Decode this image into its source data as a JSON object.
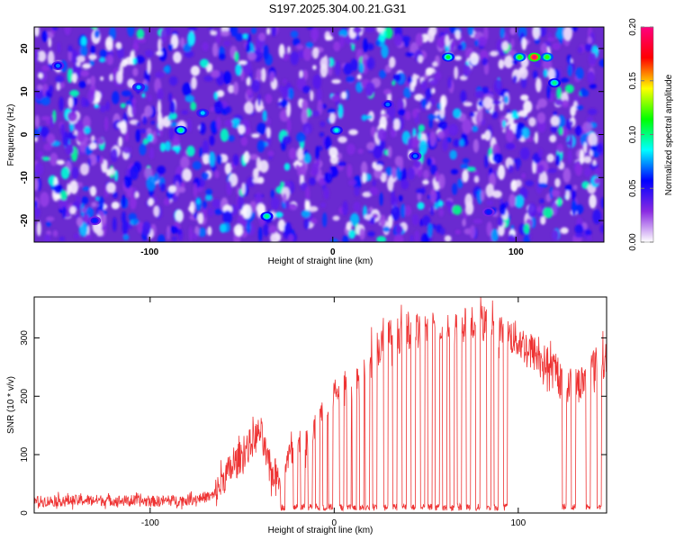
{
  "figure": {
    "title": "S197.2025.304.00.21.G31"
  },
  "chart_data": [
    {
      "type": "heatmap",
      "name": "spectrogram",
      "xlabel": "Height of straight line (km)",
      "ylabel": "Frequency (Hz)",
      "xlim": [
        -163,
        148
      ],
      "ylim": [
        -25,
        25
      ],
      "x_ticks": [
        -100,
        0,
        100
      ],
      "y_ticks": [
        20,
        10,
        0,
        -10,
        -20
      ],
      "x_tick_labels": [
        "-100",
        "0",
        "100"
      ],
      "y_tick_labels": [
        "20",
        "10",
        "0",
        "-10",
        "-20"
      ],
      "colorbar": {
        "label": "Normalized spectral amplitude",
        "range": [
          0.0,
          0.2
        ],
        "ticks": [
          0.0,
          0.05,
          0.1,
          0.15,
          0.2
        ],
        "tick_labels": [
          "0.00",
          "0.05",
          "0.10",
          "0.15",
          "0.20"
        ],
        "colors": [
          "#ffffff",
          "#8a2be2",
          "#0000ff",
          "#00ffff",
          "#00ff00",
          "#ffff00",
          "#ff0000",
          "#ff007f"
        ]
      },
      "hotspots": [
        {
          "x": 110,
          "y": 18,
          "value": 0.2
        },
        {
          "x": 102,
          "y": 18,
          "value": 0.12
        },
        {
          "x": 117,
          "y": 18,
          "value": 0.12
        },
        {
          "x": 63,
          "y": 18,
          "value": 0.11
        },
        {
          "x": 121,
          "y": 12,
          "value": 0.1
        },
        {
          "x": -83,
          "y": 1,
          "value": 0.1
        },
        {
          "x": -36,
          "y": -19,
          "value": 0.1
        },
        {
          "x": -71,
          "y": 5,
          "value": 0.08
        },
        {
          "x": -106,
          "y": 11,
          "value": 0.08
        },
        {
          "x": 2,
          "y": 1,
          "value": 0.09
        },
        {
          "x": 30,
          "y": 7,
          "value": 0.07
        },
        {
          "x": 45,
          "y": -5,
          "value": 0.07
        },
        {
          "x": -150,
          "y": 16,
          "value": 0.07
        },
        {
          "x": 85,
          "y": -18,
          "value": 0.06
        },
        {
          "x": -130,
          "y": -20,
          "value": 0.06
        }
      ]
    },
    {
      "type": "line",
      "name": "snr",
      "xlabel": "Height of straight line (km)",
      "ylabel": "SNR (10 * v/v)",
      "xlim": [
        -163,
        148
      ],
      "ylim": [
        0,
        370
      ],
      "x_ticks": [
        -100,
        0,
        100
      ],
      "y_ticks": [
        0,
        100,
        200,
        300
      ],
      "x_tick_labels": [
        "-100",
        "0",
        "100"
      ],
      "y_tick_labels": [
        "0",
        "100",
        "200",
        "300"
      ],
      "color": "#ee3333",
      "envelope": {
        "x": [
          -163,
          -130,
          -100,
          -80,
          -65,
          -60,
          -55,
          -50,
          -45,
          -40,
          -35,
          -30,
          -25,
          -20,
          -15,
          -10,
          -5,
          0,
          5,
          10,
          15,
          20,
          25,
          30,
          40,
          50,
          60,
          70,
          80,
          90,
          95,
          100,
          110,
          115,
          120,
          125,
          130,
          135,
          140,
          148
        ],
        "y": [
          20,
          22,
          20,
          22,
          30,
          60,
          80,
          100,
          120,
          140,
          70,
          65,
          95,
          110,
          120,
          150,
          180,
          205,
          215,
          225,
          245,
          275,
          285,
          300,
          310,
          315,
          318,
          320,
          325,
          315,
          305,
          295,
          270,
          255,
          240,
          225,
          215,
          225,
          250,
          265
        ]
      },
      "dropouts": [
        -28,
        -21,
        -17,
        -13,
        -9,
        -5,
        -2,
        4,
        8,
        11,
        15,
        18,
        22,
        28,
        33,
        38,
        43,
        48,
        52,
        56,
        60,
        64,
        68,
        73,
        78,
        84,
        88,
        93,
        125,
        130,
        138,
        144
      ]
    }
  ]
}
